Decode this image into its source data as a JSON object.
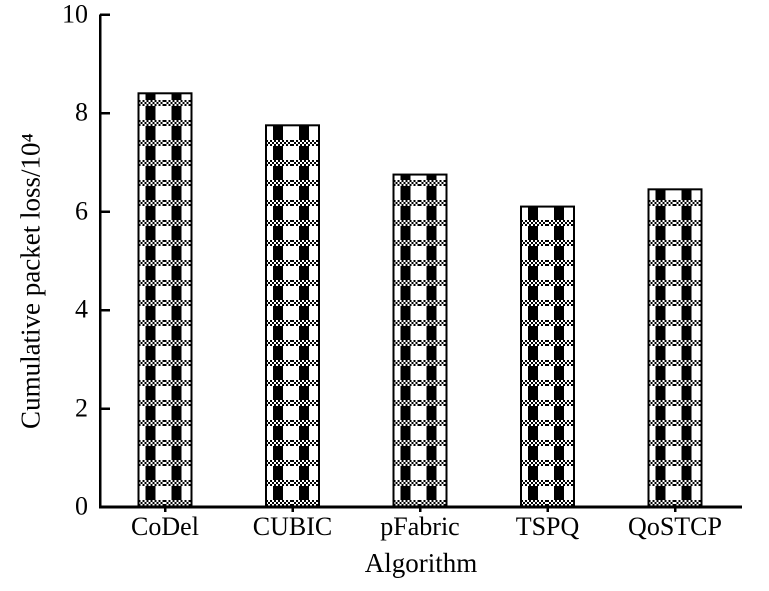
{
  "chart_data": {
    "type": "bar",
    "title": "",
    "xlabel": "Algorithm",
    "ylabel": "Cumulative packet loss/10⁴",
    "categories": [
      "CoDel",
      "CUBIC",
      "pFabric",
      "TSPQ",
      "QoSTCP"
    ],
    "values": [
      8.4,
      7.75,
      6.75,
      6.1,
      6.45
    ],
    "ylim": [
      0,
      10
    ],
    "yticks": [
      0,
      2,
      4,
      6,
      8,
      10
    ],
    "grid": false,
    "legend": "none",
    "bar_fill_style": "black-and-white checkerboard plaid pattern",
    "colors": {
      "foreground": "#000000",
      "background": "#ffffff"
    }
  }
}
